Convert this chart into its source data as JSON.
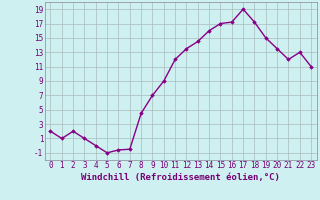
{
  "x": [
    0,
    1,
    2,
    3,
    4,
    5,
    6,
    7,
    8,
    9,
    10,
    11,
    12,
    13,
    14,
    15,
    16,
    17,
    18,
    19,
    20,
    21,
    22,
    23
  ],
  "y": [
    2.0,
    1.0,
    2.0,
    1.0,
    0.0,
    -1.0,
    -0.6,
    -0.5,
    4.5,
    7.0,
    9.0,
    12.0,
    13.5,
    14.5,
    16.0,
    17.0,
    17.2,
    19.0,
    17.2,
    15.0,
    13.5,
    12.0,
    13.0,
    11.0
  ],
  "line_color": "#880088",
  "marker": "D",
  "marker_size": 1.8,
  "bg_color": "#cef0f0",
  "grid_color": "#aabbbb",
  "xlabel": "Windchill (Refroidissement éolien,°C)",
  "xlabel_fontsize": 6.5,
  "xlim": [
    -0.5,
    23.5
  ],
  "ylim": [
    -2,
    20
  ],
  "yticks": [
    -1,
    1,
    3,
    5,
    7,
    9,
    11,
    13,
    15,
    17,
    19
  ],
  "xticks": [
    0,
    1,
    2,
    3,
    4,
    5,
    6,
    7,
    8,
    9,
    10,
    11,
    12,
    13,
    14,
    15,
    16,
    17,
    18,
    19,
    20,
    21,
    22,
    23
  ],
  "line_width": 1.0,
  "tick_fontsize": 5.5,
  "axis_color": "#770077",
  "spine_color": "#888899"
}
